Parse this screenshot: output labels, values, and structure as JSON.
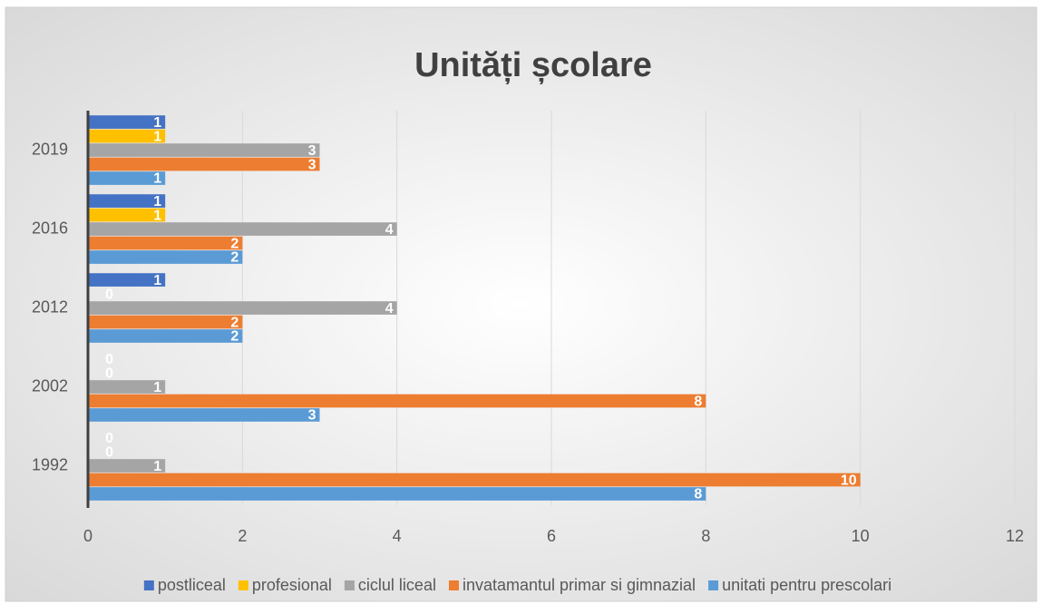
{
  "chart_data": {
    "type": "hbar",
    "title": "Unități școlare",
    "categories": [
      "1992",
      "2002",
      "2012",
      "2016",
      "2019"
    ],
    "series": [
      {
        "name": "postliceal",
        "color": "#4472c4",
        "values": [
          0,
          0,
          1,
          1,
          1
        ]
      },
      {
        "name": "profesional",
        "color": "#ffc000",
        "values": [
          0,
          0,
          0,
          1,
          1
        ]
      },
      {
        "name": "ciclul liceal",
        "color": "#a5a5a5",
        "values": [
          1,
          1,
          4,
          4,
          3
        ]
      },
      {
        "name": "invatamantul primar si gimnazial",
        "color": "#ed7d31",
        "values": [
          10,
          8,
          2,
          2,
          3
        ]
      },
      {
        "name": "unitati pentru prescolari",
        "color": "#5b9bd5",
        "values": [
          8,
          3,
          2,
          2,
          1
        ]
      }
    ],
    "xlim": [
      0,
      12
    ],
    "xticks": [
      0,
      2,
      4,
      6,
      8,
      10,
      12
    ],
    "grid": true,
    "legend": "bottom"
  }
}
